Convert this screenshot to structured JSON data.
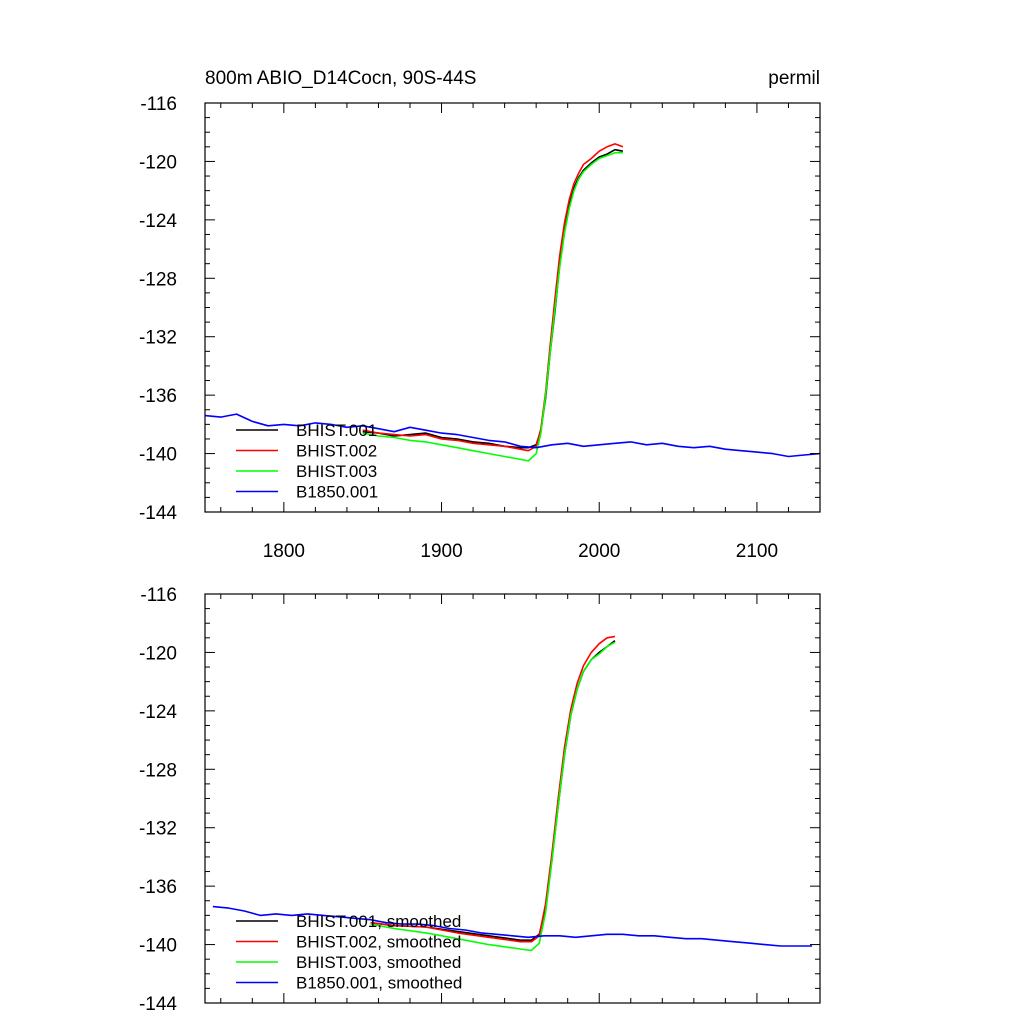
{
  "chart_data": [
    {
      "type": "line",
      "title": "800m ABIO_D14Cocn, 90S-44S",
      "units": "permil",
      "xlim": [
        1750,
        2140
      ],
      "ylim": [
        -144,
        -116
      ],
      "xticks": [
        1800,
        1900,
        2000,
        2100
      ],
      "xtick_labels": [
        "1800",
        "1900",
        "2000",
        "2100"
      ],
      "yticks": [
        -116,
        -120,
        -124,
        -128,
        -132,
        -136,
        -140,
        -144
      ],
      "ytick_labels": [
        "-116",
        "-120",
        "-124",
        "-128",
        "-132",
        "-136",
        "-140",
        "-144"
      ],
      "grid": false,
      "legend_position": "bottom-left",
      "series": [
        {
          "name": "BHIST.001",
          "color": "#000000",
          "x": [
            1850,
            1860,
            1870,
            1880,
            1890,
            1900,
            1910,
            1920,
            1930,
            1940,
            1950,
            1955,
            1960,
            1963,
            1966,
            1969,
            1972,
            1975,
            1978,
            1981,
            1984,
            1987,
            1990,
            1995,
            2000,
            2005,
            2010,
            2015
          ],
          "y": [
            -138.5,
            -138.6,
            -138.8,
            -138.7,
            -138.6,
            -138.9,
            -139.0,
            -139.2,
            -139.3,
            -139.5,
            -139.6,
            -139.6,
            -139.4,
            -138.4,
            -136.2,
            -133.0,
            -130.2,
            -127.0,
            -124.8,
            -123.0,
            -121.8,
            -121.1,
            -120.6,
            -120.1,
            -119.7,
            -119.5,
            -119.2,
            -119.3
          ]
        },
        {
          "name": "BHIST.002",
          "color": "#ff0000",
          "x": [
            1850,
            1860,
            1870,
            1880,
            1890,
            1900,
            1910,
            1920,
            1930,
            1940,
            1950,
            1955,
            1960,
            1963,
            1966,
            1969,
            1972,
            1975,
            1978,
            1981,
            1984,
            1987,
            1990,
            1995,
            2000,
            2005,
            2010,
            2015
          ],
          "y": [
            -138.4,
            -138.6,
            -138.7,
            -138.8,
            -138.7,
            -139.0,
            -139.1,
            -139.3,
            -139.4,
            -139.5,
            -139.7,
            -139.8,
            -139.5,
            -138.3,
            -135.8,
            -132.5,
            -129.3,
            -126.4,
            -124.2,
            -122.6,
            -121.5,
            -120.8,
            -120.2,
            -119.8,
            -119.3,
            -119.0,
            -118.8,
            -119.0
          ]
        },
        {
          "name": "BHIST.003",
          "color": "#00ff00",
          "x": [
            1850,
            1860,
            1870,
            1880,
            1890,
            1900,
            1910,
            1920,
            1930,
            1940,
            1950,
            1955,
            1960,
            1963,
            1966,
            1969,
            1972,
            1975,
            1978,
            1981,
            1984,
            1987,
            1990,
            1995,
            2000,
            2005,
            2010,
            2015
          ],
          "y": [
            -138.6,
            -138.8,
            -138.9,
            -139.1,
            -139.2,
            -139.4,
            -139.6,
            -139.8,
            -140.0,
            -140.2,
            -140.4,
            -140.5,
            -140.0,
            -138.6,
            -136.0,
            -133.0,
            -130.0,
            -127.2,
            -124.9,
            -123.2,
            -122.0,
            -121.2,
            -120.7,
            -120.2,
            -119.8,
            -119.6,
            -119.4,
            -119.4
          ]
        },
        {
          "name": "B1850.001",
          "color": "#0000ff",
          "x": [
            1750,
            1760,
            1770,
            1780,
            1790,
            1800,
            1810,
            1820,
            1830,
            1840,
            1850,
            1860,
            1870,
            1880,
            1890,
            1900,
            1910,
            1920,
            1930,
            1940,
            1950,
            1960,
            1970,
            1980,
            1990,
            2000,
            2010,
            2020,
            2030,
            2040,
            2050,
            2060,
            2070,
            2080,
            2090,
            2100,
            2110,
            2120,
            2130,
            2140
          ],
          "y": [
            -137.4,
            -137.5,
            -137.3,
            -137.8,
            -138.1,
            -138.0,
            -138.1,
            -137.9,
            -138.0,
            -138.2,
            -138.1,
            -138.3,
            -138.5,
            -138.2,
            -138.4,
            -138.6,
            -138.7,
            -138.9,
            -139.1,
            -139.2,
            -139.5,
            -139.6,
            -139.4,
            -139.3,
            -139.5,
            -139.4,
            -139.3,
            -139.2,
            -139.4,
            -139.3,
            -139.5,
            -139.6,
            -139.5,
            -139.7,
            -139.8,
            -139.9,
            -140.0,
            -140.2,
            -140.1,
            -140.0
          ]
        }
      ]
    },
    {
      "type": "line",
      "xlim": [
        1750,
        2140
      ],
      "ylim": [
        -144,
        -116
      ],
      "xticks": [
        1800,
        1900,
        2000,
        2100
      ],
      "yticks": [
        -116,
        -120,
        -124,
        -128,
        -132,
        -136,
        -140,
        -144
      ],
      "ytick_labels": [
        "-116",
        "-120",
        "-124",
        "-128",
        "-132",
        "-136",
        "-140",
        "-144"
      ],
      "grid": false,
      "legend_position": "bottom-left",
      "series": [
        {
          "name": "BHIST.001, smoothed",
          "color": "#000000",
          "x": [
            1855,
            1870,
            1890,
            1910,
            1930,
            1950,
            1957,
            1962,
            1966,
            1970,
            1974,
            1978,
            1982,
            1986,
            1990,
            1995,
            2000,
            2005,
            2010
          ],
          "y": [
            -138.5,
            -138.7,
            -138.8,
            -139.1,
            -139.4,
            -139.7,
            -139.7,
            -139.3,
            -137.5,
            -134.2,
            -130.5,
            -127.0,
            -124.3,
            -122.5,
            -121.3,
            -120.5,
            -120.0,
            -119.6,
            -119.2
          ]
        },
        {
          "name": "BHIST.002, smoothed",
          "color": "#ff0000",
          "x": [
            1855,
            1870,
            1890,
            1910,
            1930,
            1950,
            1957,
            1962,
            1966,
            1970,
            1974,
            1978,
            1982,
            1986,
            1990,
            1995,
            2000,
            2005,
            2010
          ],
          "y": [
            -138.5,
            -138.7,
            -138.8,
            -139.2,
            -139.5,
            -139.8,
            -139.8,
            -139.4,
            -137.2,
            -133.8,
            -130.0,
            -126.5,
            -123.9,
            -122.1,
            -120.9,
            -120.0,
            -119.4,
            -119.0,
            -118.9
          ]
        },
        {
          "name": "BHIST.003, smoothed",
          "color": "#00ff00",
          "x": [
            1855,
            1870,
            1890,
            1910,
            1930,
            1950,
            1957,
            1962,
            1966,
            1970,
            1974,
            1978,
            1982,
            1986,
            1990,
            1995,
            2000,
            2005,
            2010
          ],
          "y": [
            -138.6,
            -138.9,
            -139.2,
            -139.6,
            -140.0,
            -140.3,
            -140.4,
            -139.9,
            -137.8,
            -134.3,
            -130.5,
            -127.0,
            -124.3,
            -122.5,
            -121.3,
            -120.5,
            -120.1,
            -119.6,
            -119.3
          ]
        },
        {
          "name": "B1850.001, smoothed",
          "color": "#0000ff",
          "x": [
            1755,
            1765,
            1775,
            1785,
            1795,
            1805,
            1815,
            1825,
            1835,
            1845,
            1855,
            1865,
            1875,
            1885,
            1895,
            1905,
            1915,
            1925,
            1935,
            1945,
            1955,
            1965,
            1975,
            1985,
            1995,
            2005,
            2015,
            2025,
            2035,
            2045,
            2055,
            2065,
            2075,
            2085,
            2095,
            2105,
            2115,
            2125,
            2135
          ],
          "y": [
            -137.4,
            -137.5,
            -137.7,
            -138.0,
            -137.9,
            -138.0,
            -137.9,
            -138.0,
            -138.1,
            -138.2,
            -138.3,
            -138.5,
            -138.6,
            -138.6,
            -138.7,
            -138.9,
            -139.0,
            -139.2,
            -139.3,
            -139.4,
            -139.5,
            -139.4,
            -139.4,
            -139.5,
            -139.4,
            -139.3,
            -139.3,
            -139.4,
            -139.4,
            -139.5,
            -139.6,
            -139.6,
            -139.7,
            -139.8,
            -139.9,
            -140.0,
            -140.1,
            -140.1,
            -140.1
          ]
        }
      ]
    }
  ]
}
